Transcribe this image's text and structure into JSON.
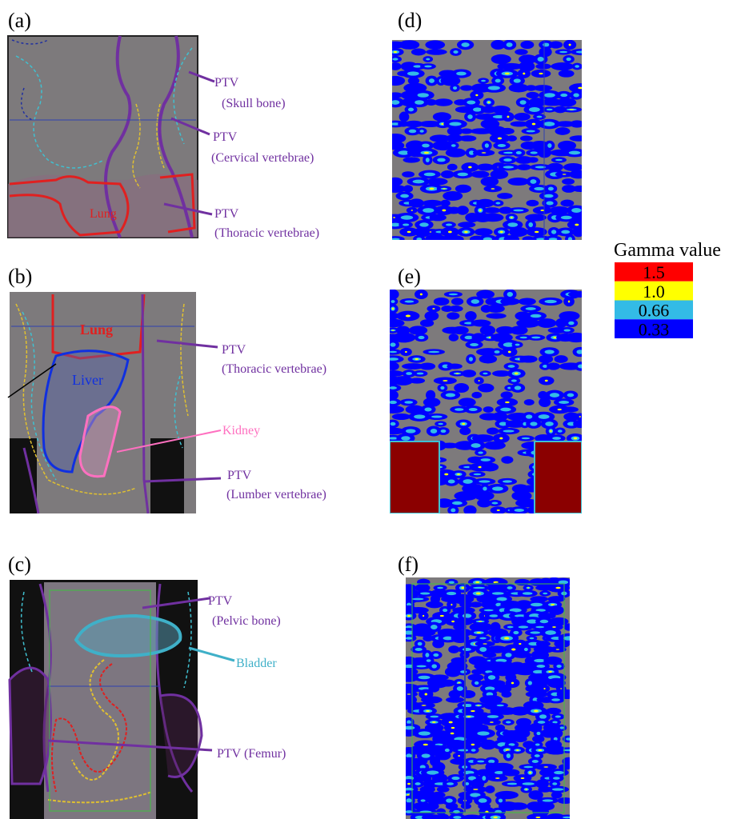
{
  "panels": [
    {
      "label": "(a)",
      "annotations": [
        "PTV",
        "(Skull bone)",
        "PTV",
        "(Cervical vertebrae)",
        "PTV",
        "(Thoracic vertebrae)",
        "Lung"
      ]
    },
    {
      "label": "(b)",
      "annotations": [
        "Lung",
        "Liver",
        "PTV",
        "(Thoracic vertebrae)",
        "Kidney",
        "PTV",
        "(Lumber vertebrae)"
      ]
    },
    {
      "label": "(c)",
      "annotations": [
        "PTV",
        "(Pelvic bone)",
        "Bladder",
        "PTV (Femur)"
      ]
    },
    {
      "label": "(d)"
    },
    {
      "label": "(e)"
    },
    {
      "label": "(f)"
    }
  ],
  "legend": {
    "title": "Gamma value",
    "items": [
      {
        "label": "1.5",
        "color": "#ff0000"
      },
      {
        "label": "1.0",
        "color": "#ffff00"
      },
      {
        "label": "0.66",
        "color": "#33bbe6"
      },
      {
        "label": "0.33",
        "color": "#0000ff"
      }
    ]
  }
}
